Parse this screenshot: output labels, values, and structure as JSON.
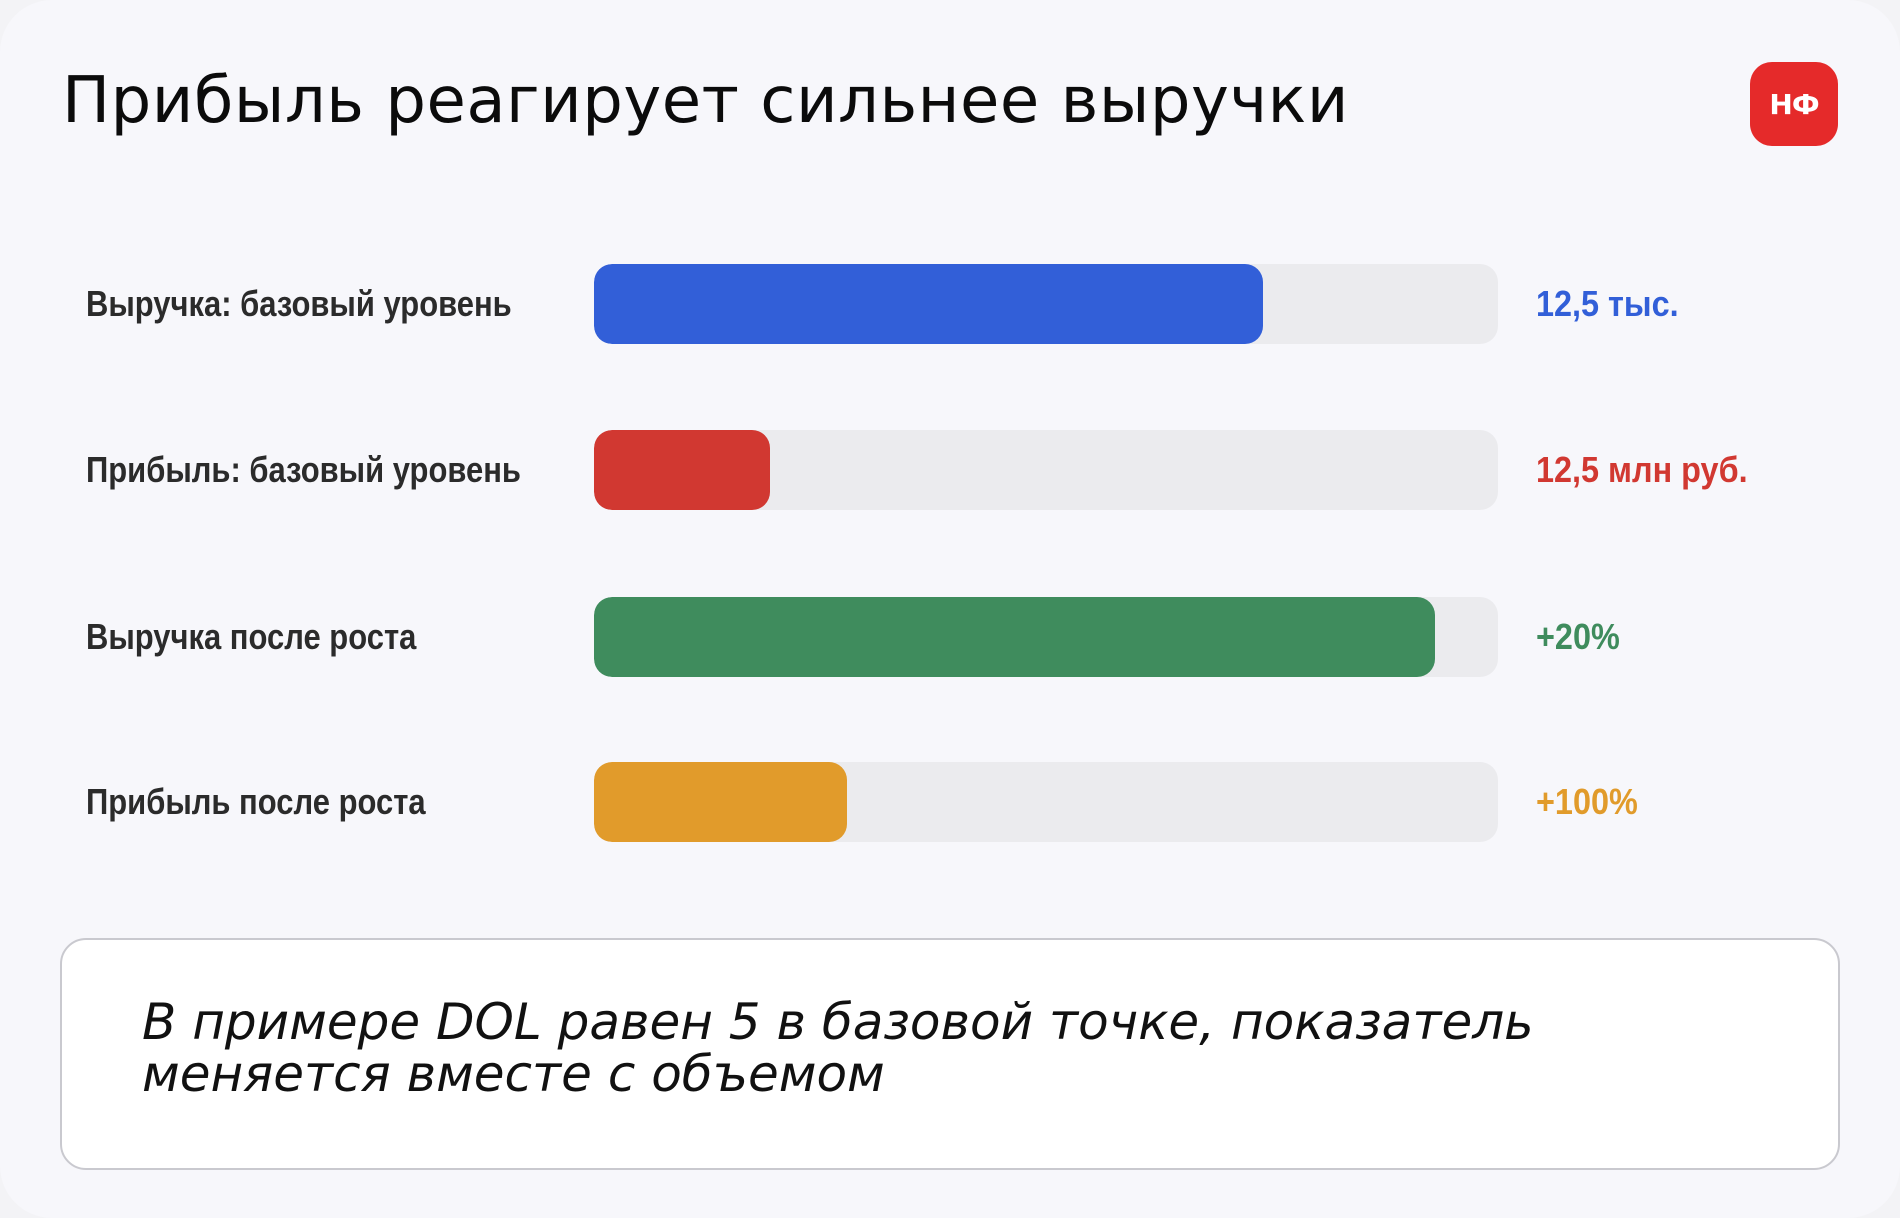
{
  "title": "Прибыль реагирует сильнее выручки",
  "logo": "НФ",
  "chart_data": {
    "type": "bar",
    "orientation": "horizontal",
    "categories": [
      "Выручка: базовый уровень",
      "Прибыль: базовый уровень",
      "Выручка после роста",
      "Прибыль после роста"
    ],
    "values": [
      0.74,
      0.195,
      0.93,
      0.28
    ],
    "value_labels": [
      "12,5 тыс.",
      "12,5 млн руб.",
      "+20%",
      "+100%"
    ],
    "colors": [
      "#325fd8",
      "#d13831",
      "#3f8c5d",
      "#e19b2b"
    ],
    "track_color": "#ebebee",
    "xlim": [
      0,
      1
    ]
  },
  "note": "В примере DOL равен 5 в базовой точке, показатель меняется вместе с объемом"
}
